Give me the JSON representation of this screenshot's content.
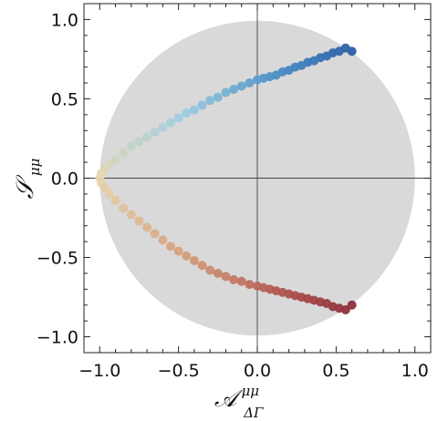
{
  "chart_data": {
    "type": "scatter",
    "title": "",
    "xlabel": "𝒜",
    "xlabel_sup": "μμ",
    "xlabel_sub": "ΔΓ",
    "ylabel": "𝒮",
    "ylabel_sub": "μμ",
    "xlim": [
      -1.1,
      1.1
    ],
    "ylim": [
      -1.1,
      1.1
    ],
    "x_ticks": [
      -1.0,
      -0.5,
      0.0,
      0.5,
      1.0
    ],
    "x_tick_labels": [
      "−1.0",
      "−0.5",
      "0.0",
      "0.5",
      "1.0"
    ],
    "y_ticks": [
      -1.0,
      -0.5,
      0.0,
      0.5,
      1.0
    ],
    "y_tick_labels": [
      "−1.0",
      "−0.5",
      "0.0",
      "0.5",
      "1.0"
    ],
    "grid": false,
    "unit_disk": {
      "center": [
        0,
        0
      ],
      "radius": 1.0,
      "color": "#d9d9d9"
    },
    "reference_lines": {
      "x": 0,
      "y": 0
    },
    "colormap": [
      "#2a5ea6",
      "#4a8fc6",
      "#9fcfe0",
      "#e8d8b0",
      "#d6a17e",
      "#b45a52",
      "#8e2f3a"
    ],
    "series": [
      {
        "points": [
          [
            0.6,
            0.8
          ],
          [
            0.56,
            0.82
          ],
          [
            0.52,
            0.8
          ],
          [
            0.48,
            0.79
          ],
          [
            0.44,
            0.77
          ],
          [
            0.4,
            0.76
          ],
          [
            0.36,
            0.74
          ],
          [
            0.32,
            0.73
          ],
          [
            0.28,
            0.71
          ],
          [
            0.24,
            0.7
          ],
          [
            0.2,
            0.68
          ],
          [
            0.16,
            0.67
          ],
          [
            0.12,
            0.65
          ],
          [
            0.08,
            0.64
          ],
          [
            0.04,
            0.63
          ],
          [
            0.0,
            0.62
          ],
          [
            -0.05,
            0.6
          ],
          [
            -0.1,
            0.58
          ],
          [
            -0.15,
            0.56
          ],
          [
            -0.2,
            0.54
          ],
          [
            -0.25,
            0.51
          ],
          [
            -0.3,
            0.49
          ],
          [
            -0.35,
            0.46
          ],
          [
            -0.4,
            0.43
          ],
          [
            -0.45,
            0.41
          ],
          [
            -0.5,
            0.38
          ],
          [
            -0.55,
            0.35
          ],
          [
            -0.6,
            0.32
          ],
          [
            -0.65,
            0.29
          ],
          [
            -0.7,
            0.26
          ],
          [
            -0.75,
            0.23
          ],
          [
            -0.8,
            0.2
          ],
          [
            -0.85,
            0.16
          ],
          [
            -0.9,
            0.12
          ],
          [
            -0.94,
            0.09
          ],
          [
            -0.97,
            0.06
          ],
          [
            -0.99,
            0.03
          ],
          [
            -1.0,
            0.0
          ],
          [
            -0.99,
            -0.03
          ],
          [
            -0.97,
            -0.06
          ],
          [
            -0.94,
            -0.1
          ],
          [
            -0.9,
            -0.14
          ],
          [
            -0.85,
            -0.19
          ],
          [
            -0.8,
            -0.23
          ],
          [
            -0.75,
            -0.27
          ],
          [
            -0.7,
            -0.31
          ],
          [
            -0.65,
            -0.35
          ],
          [
            -0.6,
            -0.39
          ],
          [
            -0.55,
            -0.43
          ],
          [
            -0.5,
            -0.46
          ],
          [
            -0.45,
            -0.49
          ],
          [
            -0.4,
            -0.52
          ],
          [
            -0.35,
            -0.55
          ],
          [
            -0.3,
            -0.58
          ],
          [
            -0.25,
            -0.6
          ],
          [
            -0.2,
            -0.62
          ],
          [
            -0.15,
            -0.64
          ],
          [
            -0.1,
            -0.65
          ],
          [
            -0.05,
            -0.67
          ],
          [
            0.0,
            -0.68
          ],
          [
            0.04,
            -0.69
          ],
          [
            0.08,
            -0.7
          ],
          [
            0.12,
            -0.71
          ],
          [
            0.16,
            -0.72
          ],
          [
            0.2,
            -0.73
          ],
          [
            0.24,
            -0.74
          ],
          [
            0.28,
            -0.75
          ],
          [
            0.32,
            -0.76
          ],
          [
            0.36,
            -0.77
          ],
          [
            0.4,
            -0.78
          ],
          [
            0.44,
            -0.79
          ],
          [
            0.48,
            -0.81
          ],
          [
            0.52,
            -0.82
          ],
          [
            0.56,
            -0.83
          ],
          [
            0.6,
            -0.8
          ]
        ]
      }
    ]
  }
}
